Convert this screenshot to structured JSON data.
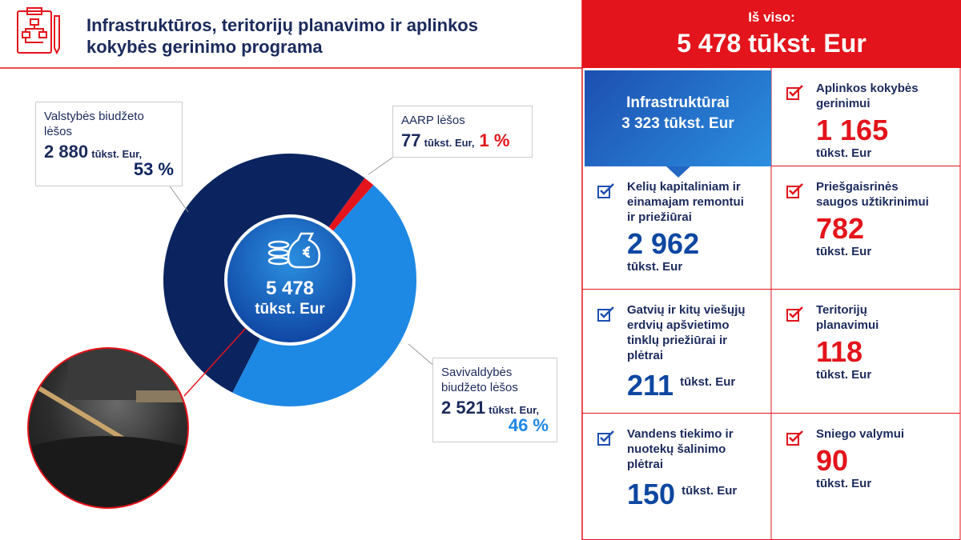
{
  "header": {
    "title": [
      "Infrastruktūros, teritorijų planavimo ir aplinkos",
      "kokybės gerinimo programa"
    ]
  },
  "total": {
    "label": "Iš viso:",
    "amount": "5 478 tūkst. Eur"
  },
  "donut": {
    "center": {
      "amount": "5 478",
      "unit": "tūkst. Eur"
    },
    "segments": [
      {
        "name": [
          "Valstybės biudžeto",
          "lėšos"
        ],
        "value": 2880,
        "value_label": "2 880",
        "unit": "tūkst. Eur,",
        "percent": "53 %",
        "color": "#0b2460"
      },
      {
        "name": [
          "AARP lėšos"
        ],
        "value": 77,
        "value_label": "77",
        "unit": "tūkst. Eur,",
        "percent": "1 %",
        "color": "#e3141b"
      },
      {
        "name": [
          "Savivaldybės",
          "biudžeto lėšos"
        ],
        "value": 2521,
        "value_label": "2 521",
        "unit": "tūkst. Eur,",
        "percent": "46 %",
        "color": "#1e88e5"
      }
    ]
  },
  "infrastructure": {
    "title": "Infrastruktūrai",
    "amount": "3 323 tūkst. Eur",
    "items": [
      {
        "label": [
          "Kelių kapitaliniam ir",
          "einamajam remontui",
          "ir priežiūrai"
        ],
        "amount": "2 962",
        "unit": "tūkst. Eur"
      },
      {
        "label": [
          "Gatvių ir kitų viešųjų",
          "erdvių  apšvietimo",
          "tinklų priežiūrai ir",
          "plėtrai"
        ],
        "amount": "211",
        "unit": "tūkst. Eur"
      },
      {
        "label": [
          "Vandens tiekimo ir",
          "nuotekų šalinimo",
          "plėtrai"
        ],
        "amount": "150",
        "unit": "tūkst. Eur"
      }
    ]
  },
  "other_items": [
    {
      "label": [
        "Aplinkos kokybės",
        "gerinimui"
      ],
      "amount": "1 165",
      "unit": "tūkst. Eur"
    },
    {
      "label": [
        "Priešgaisrinės",
        "saugos užtikrinimui"
      ],
      "amount": "782",
      "unit": "tūkst. Eur"
    },
    {
      "label": [
        "Teritorijų",
        "planavimui"
      ],
      "amount": "118",
      "unit": "tūkst. Eur"
    },
    {
      "label": [
        "Sniego valymui"
      ],
      "amount": "90",
      "unit": "tūkst. Eur"
    }
  ]
}
